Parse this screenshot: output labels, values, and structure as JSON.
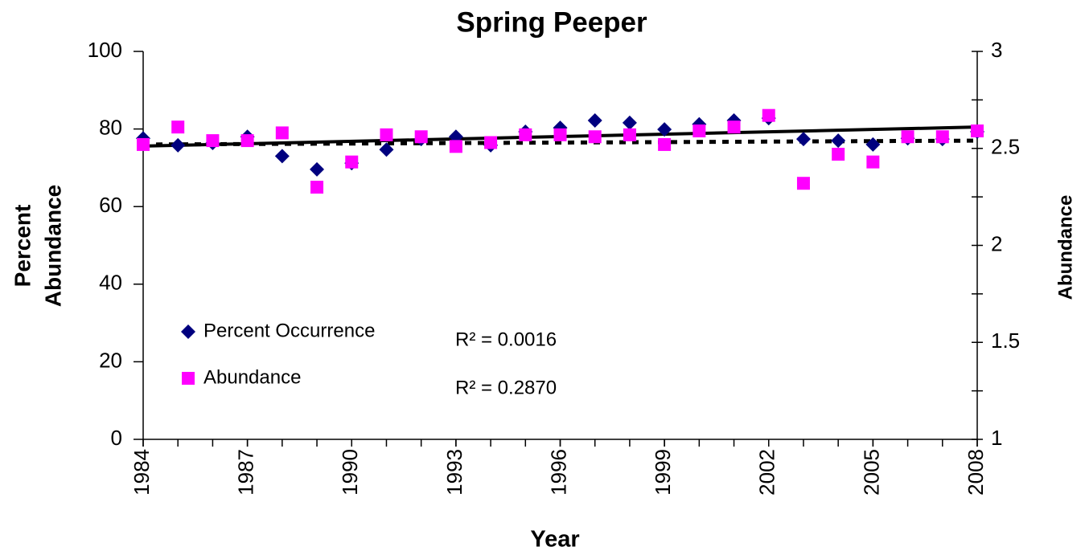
{
  "chart_data": {
    "type": "scatter",
    "title": "Spring Peeper",
    "xlabel": "Year",
    "ylabel": [
      "Percent",
      "Abundance"
    ],
    "y2label": "Abundance",
    "x": [
      1984,
      1985,
      1986,
      1987,
      1988,
      1989,
      1990,
      1991,
      1992,
      1993,
      1994,
      1995,
      1996,
      1997,
      1998,
      1999,
      2000,
      2001,
      2002,
      2003,
      2004,
      2005,
      2006,
      2007,
      2008
    ],
    "series": [
      {
        "name": "Percent Occurrence",
        "color": "#00007f",
        "marker": "diamond",
        "axis": "y",
        "values": [
          77.6,
          75.8,
          76.4,
          78,
          73,
          69.6,
          71.2,
          74.7,
          77.4,
          78,
          75.8,
          79.3,
          80.3,
          82.2,
          81.6,
          79.9,
          81.2,
          82.2,
          82.8,
          77.4,
          77,
          76,
          77.6,
          77.4,
          79.3
        ]
      },
      {
        "name": "Abundance",
        "color": "#ff00ff",
        "marker": "square",
        "axis": "y2",
        "values": [
          2.52,
          2.61,
          2.54,
          2.54,
          2.58,
          2.3,
          2.43,
          2.57,
          2.56,
          2.51,
          2.53,
          2.57,
          2.57,
          2.56,
          2.57,
          2.52,
          2.59,
          2.61,
          2.67,
          2.32,
          2.47,
          2.43,
          2.56,
          2.56,
          2.59
        ]
      }
    ],
    "trendlines": [
      {
        "style": "solid",
        "axis": "y",
        "x": [
          1984,
          2008
        ],
        "values": [
          75.6,
          80.5
        ]
      },
      {
        "style": "dotted",
        "axis": "y2",
        "x": [
          1984,
          2008
        ],
        "values": [
          2.52,
          2.54
        ]
      }
    ],
    "annotations": [
      "R² = 0.0016",
      "R² = 0.2870"
    ],
    "xlim": [
      1984,
      2008
    ],
    "xticks": [
      1984,
      1987,
      1990,
      1993,
      1996,
      1999,
      2002,
      2005,
      2008
    ],
    "ylim": [
      0,
      100
    ],
    "yticks": [
      0,
      20,
      40,
      60,
      80,
      100
    ],
    "y2lim": [
      1,
      3
    ],
    "y2ticks": [
      1,
      1.5,
      2,
      2.5,
      3
    ],
    "y2minorticks": [
      1.25,
      1.75,
      2.25,
      2.75
    ]
  }
}
